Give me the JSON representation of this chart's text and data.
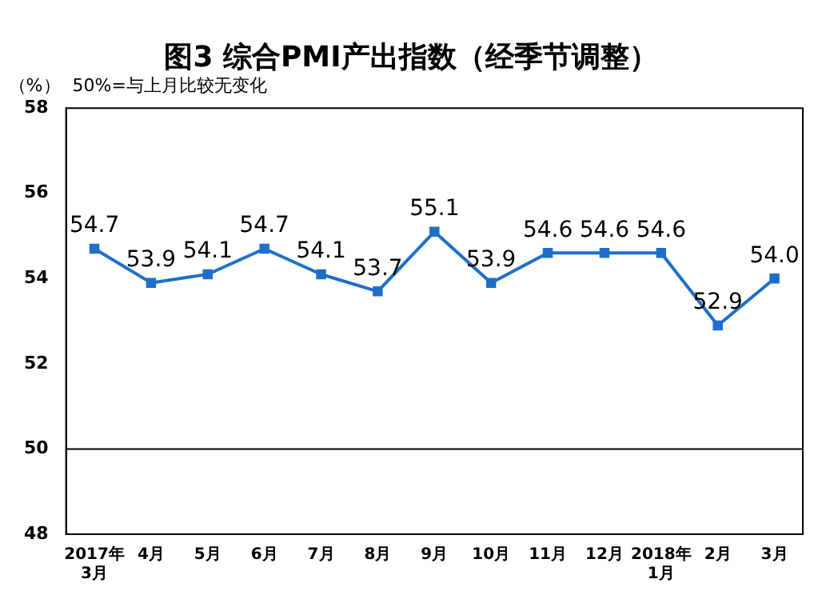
{
  "chart_data": {
    "type": "line",
    "title": "图3 综合PMI产出指数（经季节调整）",
    "ylabel": "（%）",
    "annotations": [
      "50%=与上月比较无变化"
    ],
    "categories": [
      "2017年 3月",
      "4月",
      "5月",
      "6月",
      "7月",
      "8月",
      "9月",
      "10月",
      "11月",
      "12月",
      "2018年 1月",
      "2月",
      "3月"
    ],
    "series": [
      {
        "color": "#1f6fc8",
        "values": [
          54.7,
          53.9,
          54.1,
          54.7,
          54.1,
          53.7,
          55.1,
          53.9,
          54.6,
          54.6,
          54.6,
          52.9,
          54.0
        ],
        "value_labels": [
          "54.7",
          "53.9",
          "54.1",
          "54.7",
          "54.1",
          "53.7",
          "55.1",
          "53.9",
          "54.6",
          "54.6",
          "54.6",
          "52.9",
          "54.0"
        ]
      }
    ],
    "ylim": [
      48,
      58
    ],
    "yticks": [
      48,
      50,
      52,
      54,
      56,
      58
    ],
    "grid": false,
    "legend": false,
    "marker": "square",
    "line_style": "solid",
    "ref_lines": [
      {
        "axis": "y",
        "value": 50,
        "color": "#000000"
      }
    ]
  }
}
